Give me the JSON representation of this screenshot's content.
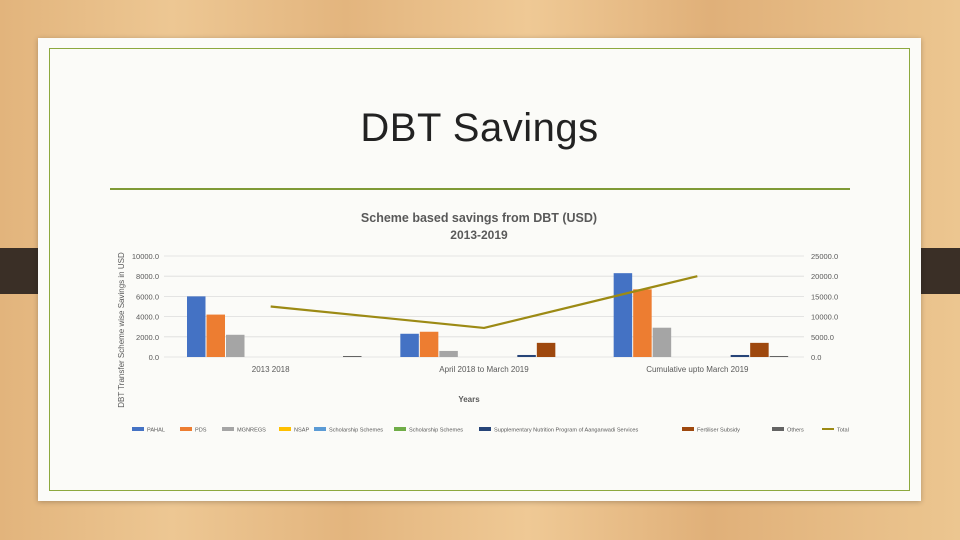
{
  "slide": {
    "title": "DBT Savings"
  },
  "chart_data": {
    "type": "bar",
    "title": "Scheme based savings from DBT (USD)",
    "subtitle": "2013-2019",
    "xlabel": "Years",
    "ylabel": "DBT Transfer Scheme wise Savings in USD",
    "categories": [
      "2013 2018",
      "April 2018 to March 2019",
      "Cumulative upto March 2019"
    ],
    "ylim": [
      0,
      10000
    ],
    "y_ticks": [
      "10000.0",
      "8000.0",
      "6000.0",
      "4000.0",
      "2000.0",
      "0.0"
    ],
    "y2lim": [
      0,
      25000
    ],
    "y2_ticks": [
      "25000.0",
      "20000.0",
      "15000.0",
      "10000.0",
      "5000.0",
      "0.0"
    ],
    "grid": true,
    "legend_position": "bottom",
    "series": [
      {
        "name": "PAHAL",
        "color": "#4472c4",
        "axis": "left",
        "values": [
          6000,
          2300,
          8300
        ]
      },
      {
        "name": "PDS",
        "color": "#ed7d31",
        "axis": "left",
        "values": [
          4200,
          2500,
          6700
        ]
      },
      {
        "name": "MGNREGS",
        "color": "#a5a5a5",
        "axis": "left",
        "values": [
          2200,
          600,
          2900
        ]
      },
      {
        "name": "NSAP",
        "color": "#ffc000",
        "axis": "left",
        "values": [
          0,
          0,
          0
        ]
      },
      {
        "name": "Scholarship Schemes",
        "color": "#5b9bd5",
        "axis": "left",
        "values": [
          0,
          0,
          0
        ]
      },
      {
        "name": "Scholarship Schemes",
        "color": "#70ad47",
        "axis": "left",
        "values": [
          0,
          0,
          0
        ]
      },
      {
        "name": "Supplementary Nutrition Program of Aanganwadi Services",
        "color": "#264478",
        "axis": "left",
        "values": [
          0,
          200,
          200
        ]
      },
      {
        "name": "Fertiliser Subsidy",
        "color": "#9e480e",
        "axis": "left",
        "values": [
          0,
          1400,
          1400
        ]
      },
      {
        "name": "Others",
        "color": "#636363",
        "axis": "left",
        "values": [
          100,
          0,
          100
        ]
      },
      {
        "name": "Total",
        "color": "#9c8a14",
        "axis": "right",
        "type": "line",
        "values": [
          12500,
          7200,
          20000
        ]
      }
    ]
  }
}
